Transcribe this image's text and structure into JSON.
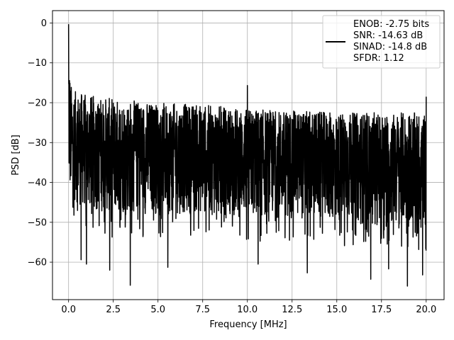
{
  "chart_data": {
    "type": "line",
    "title": "",
    "xlabel": "Frequency [MHz]",
    "ylabel": "PSD [dB]",
    "xlim": [
      -0.9,
      21.0
    ],
    "ylim": [
      -69.4,
      3.1
    ],
    "xticks": [
      0.0,
      2.5,
      5.0,
      7.5,
      10.0,
      12.5,
      15.0,
      17.5,
      20.0
    ],
    "xtick_labels": [
      "0.0",
      "2.5",
      "5.0",
      "7.5",
      "10.0",
      "12.5",
      "15.0",
      "17.5",
      "20.0"
    ],
    "yticks": [
      0,
      -10,
      -20,
      -30,
      -40,
      -50,
      -60
    ],
    "ytick_labels": [
      "0",
      "−10",
      "−20",
      "−30",
      "−40",
      "−50",
      "−60"
    ],
    "grid": true,
    "legend_position": "top-right",
    "legend_lines": [
      "ENOB: -2.75 bits",
      "SNR: -14.63 dB",
      "SINAD: -14.8 dB",
      "SFDR: 1.12"
    ],
    "series": [
      {
        "color": "#000000",
        "x_range": [
          0.0,
          20.0
        ],
        "noise_band_upper": [
          [
            0.0,
            -0.3
          ],
          [
            0.05,
            -8
          ],
          [
            0.1,
            -15
          ],
          [
            0.3,
            -17
          ],
          [
            1.0,
            -18
          ],
          [
            2.5,
            -19
          ],
          [
            5.0,
            -20
          ],
          [
            7.5,
            -20.5
          ],
          [
            10.0,
            -21.5
          ],
          [
            12.5,
            -22
          ],
          [
            15.0,
            -22.5
          ],
          [
            17.5,
            -22.5
          ],
          [
            20.0,
            -22.5
          ]
        ],
        "noise_band_lower": [
          [
            0.0,
            -44
          ],
          [
            1.0,
            -47
          ],
          [
            2.5,
            -48
          ],
          [
            5.0,
            -48
          ],
          [
            7.5,
            -48
          ],
          [
            10.0,
            -49
          ],
          [
            12.5,
            -49
          ],
          [
            15.0,
            -50
          ],
          [
            17.5,
            -51
          ],
          [
            20.0,
            -51
          ]
        ],
        "notable_points": [
          {
            "x": 0.0,
            "y": -0.3
          },
          {
            "x": 10.0,
            "y": -15.7
          },
          {
            "x": 20.0,
            "y": -18.5
          },
          {
            "x": 2.3,
            "y": -62
          },
          {
            "x": 3.45,
            "y": -65.8
          },
          {
            "x": 5.55,
            "y": -61.3
          },
          {
            "x": 10.6,
            "y": -60.5
          },
          {
            "x": 13.35,
            "y": -62.7
          },
          {
            "x": 16.9,
            "y": -64.3
          },
          {
            "x": 17.9,
            "y": -61.7
          },
          {
            "x": 18.95,
            "y": -66
          },
          {
            "x": 19.8,
            "y": -63.2
          },
          {
            "x": 0.7,
            "y": -59.4
          },
          {
            "x": 1.0,
            "y": -60.5
          }
        ]
      }
    ]
  }
}
